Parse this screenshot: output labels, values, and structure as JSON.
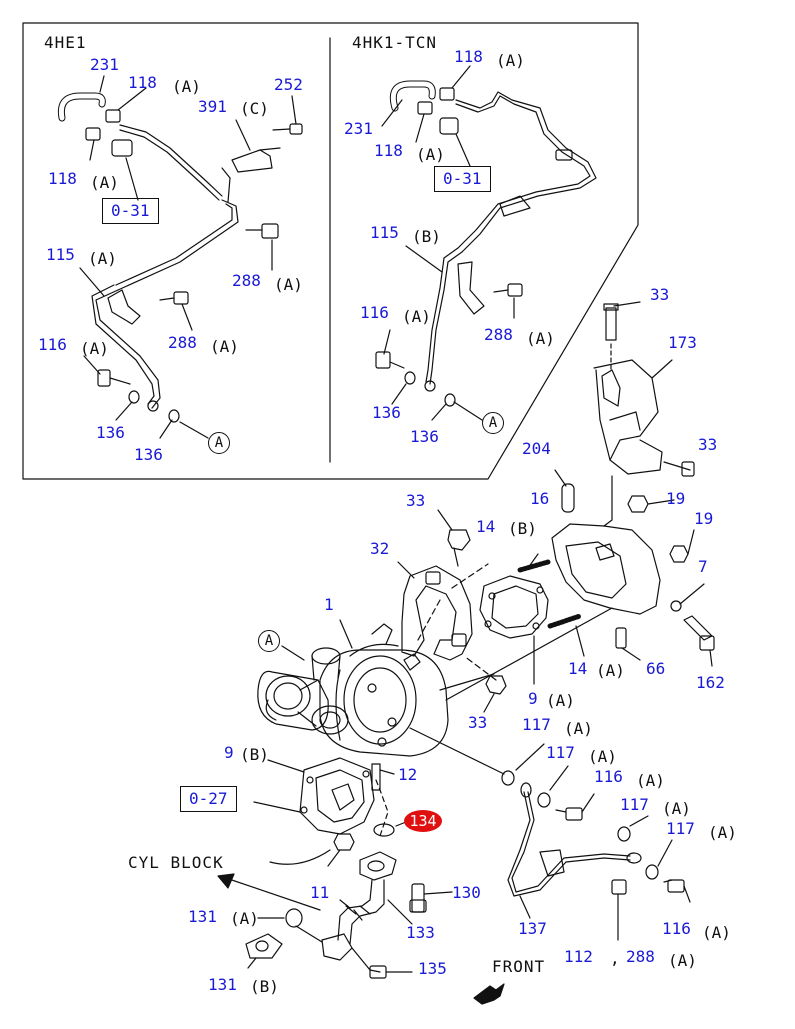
{
  "diagram": {
    "inset": {
      "left_title": "4HE1",
      "right_title": "4HK1-TCN",
      "left_labels": {
        "p231": "231",
        "p118a_top": "118",
        "p118a_top_sfx": "(A)",
        "p391": "391",
        "p391_sfx": "(C)",
        "p252": "252",
        "p118a_left": "118",
        "p118a_left_sfx": "(A)",
        "ref031": "0-31",
        "p115": "115",
        "p115_sfx": "(A)",
        "p288a_1": "288",
        "p288a_1_sfx": "(A)",
        "p288a_2": "288",
        "p288a_2_sfx": "(A)",
        "p116": "116",
        "p116_sfx": "(A)",
        "p136_1": "136",
        "p136_2": "136",
        "circleA": "A"
      },
      "right_labels": {
        "p118": "118",
        "p118_sfx": "(A)",
        "p231": "231",
        "p118b": "118",
        "p118b_sfx": "(A)",
        "ref031": "0-31",
        "p115": "115",
        "p115_sfx": "(B)",
        "p288": "288",
        "p288_sfx": "(A)",
        "p116": "116",
        "p116_sfx": "(A)",
        "p136_1": "136",
        "p136_2": "136",
        "circleA": "A"
      }
    },
    "main_labels": {
      "p33_top": "33",
      "p173": "173",
      "p33_right": "33",
      "p204": "204",
      "p19_1": "19",
      "p19_2": "19",
      "p16": "16",
      "p33_mid": "33",
      "p14b": "14",
      "p14b_sfx": "(B)",
      "p32": "32",
      "p7": "7",
      "p1": "1",
      "p162": "162",
      "p14a": "14",
      "p14a_sfx": "(A)",
      "p66": "66",
      "circleA": "A",
      "p9a": "9",
      "p9a_sfx": "(A)",
      "p33_low": "33",
      "p117a_1": "117",
      "p117a_1_sfx": "(A)",
      "p9b": "9",
      "p9b_sfx": "(B)",
      "p117a_2": "117",
      "p117a_2_sfx": "(A)",
      "p12": "12",
      "p116a": "116",
      "p116a_sfx": "(A)",
      "ref027": "0-27",
      "p117a_3": "117",
      "p117a_3_sfx": "(A)",
      "p134": "134",
      "p117a_4": "117",
      "p117a_4_sfx": "(A)",
      "cyl_block": "CYL BLOCK",
      "p11": "11",
      "p130": "130",
      "p131a": "131",
      "p131a_sfx": "(A)",
      "p133": "133",
      "p137": "137",
      "p116a_2": "116",
      "p116a_2_sfx": "(A)",
      "p112": "112",
      "comma": ",",
      "p288a": "288",
      "p288a_sfx": "(A)",
      "front": "FRONT",
      "p131b": "131",
      "p131b_sfx": "(B)",
      "p135": "135"
    },
    "colors": {
      "link_blue": "#1a1ad6",
      "line": "#111111",
      "highlight_red": "#e01010"
    }
  }
}
